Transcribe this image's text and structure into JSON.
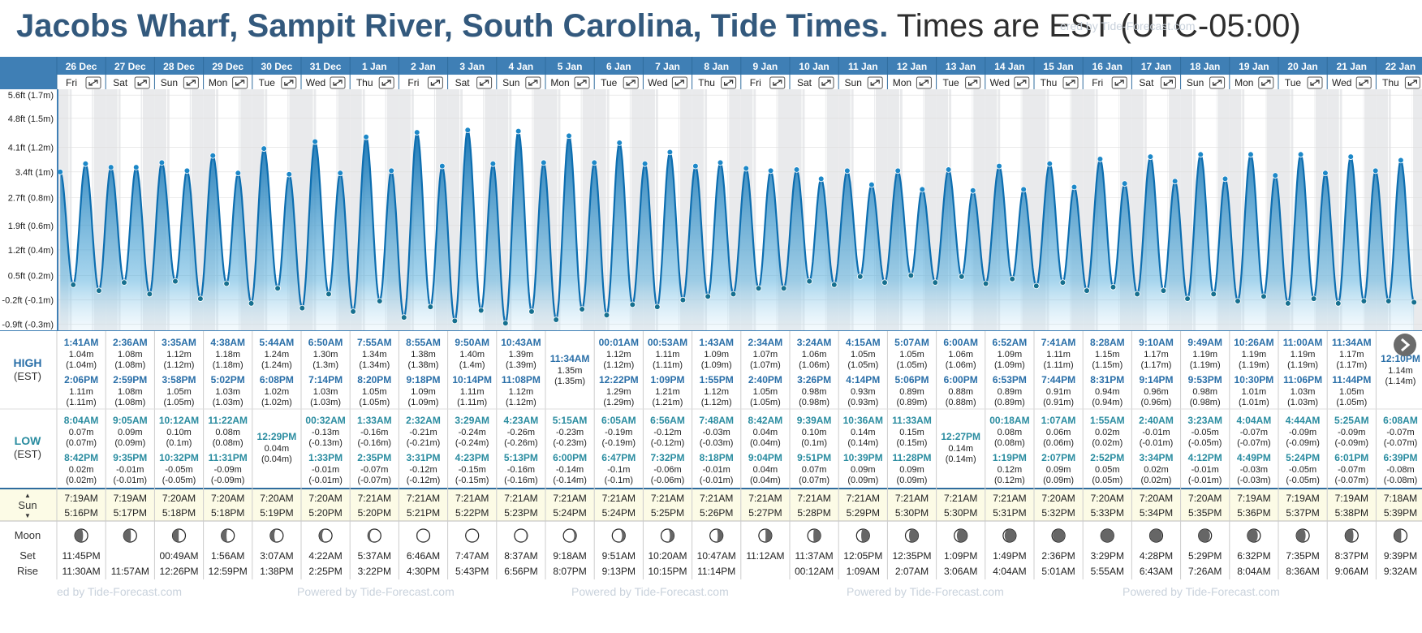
{
  "title": {
    "location": "Jacobs Wharf, Sampit River, South Carolina, Tide Times.",
    "tz_note": "Times are EST (UTC-05:00)"
  },
  "credit": "Powered by Tide-Forecast.com",
  "credit_top": "ered by Tide-Forecast.com",
  "credit_bottom_first": "ed by Tide-Forecast.com",
  "row_labels": {
    "high": "HIGH",
    "high_tz": "(EST)",
    "low": "LOW",
    "low_tz": "(EST)",
    "sun": "Sun",
    "moon": "Moon",
    "set": "Set",
    "rise": "Rise"
  },
  "expand_icon": "expand-icon",
  "next_icon": "chevron-right-icon",
  "colors": {
    "header": "#3f7fb5",
    "title": "#33597d",
    "tide_high": "#0d6eb0",
    "tide_low": "#5fb3df",
    "high_text": "#2a6fa8",
    "low_text": "#2a8ca0",
    "sun_bg": "#fcfbe6",
    "grid_shade": "#e9eaec"
  },
  "chart_data": {
    "type": "area",
    "title": "",
    "ylabel": "",
    "y_ticks": [
      "5.6ft (1.7m)",
      "4.8ft (1.5m)",
      "4.1ft (1.2m)",
      "3.4ft (1m)",
      "2.7ft (0.8m)",
      "1.9ft (0.6m)",
      "1.2ft (0.4m)",
      "0.5ft (0.2m)",
      "-0.2ft (-0.1m)",
      "-0.9ft (-0.3m)"
    ],
    "ylim_m": [
      -0.3,
      1.75
    ],
    "grid": true,
    "days": [
      {
        "date": "26 Dec",
        "dow": "Fri",
        "highs": [
          [
            "1:41AM",
            "1.04m",
            "(1.04m)"
          ],
          [
            "2:06PM",
            "1.11m",
            "(1.11m)"
          ]
        ],
        "lows": [
          [
            "8:04AM",
            "0.07m",
            "(0.07m)"
          ],
          [
            "8:42PM",
            "0.02m",
            "(0.02m)"
          ]
        ],
        "sunrise": "7:19AM",
        "sunset": "5:16PM",
        "moon_phase": 0.18,
        "moonset": "11:45PM",
        "moonrise": "11:30AM"
      },
      {
        "date": "27 Dec",
        "dow": "Sat",
        "highs": [
          [
            "2:36AM",
            "1.08m",
            "(1.08m)"
          ],
          [
            "2:59PM",
            "1.08m",
            "(1.08m)"
          ]
        ],
        "lows": [
          [
            "9:05AM",
            "0.09m",
            "(0.09m)"
          ],
          [
            "9:35PM",
            "-0.01m",
            "(-0.01m)"
          ]
        ],
        "sunrise": "7:19AM",
        "sunset": "5:17PM",
        "moon_phase": 0.22,
        "moonset": "",
        "moonrise": "11:57AM"
      },
      {
        "date": "28 Dec",
        "dow": "Sun",
        "highs": [
          [
            "3:35AM",
            "1.12m",
            "(1.12m)"
          ],
          [
            "3:58PM",
            "1.05m",
            "(1.05m)"
          ]
        ],
        "lows": [
          [
            "10:12AM",
            "0.10m",
            "(0.1m)"
          ],
          [
            "10:32PM",
            "-0.05m",
            "(-0.05m)"
          ]
        ],
        "sunrise": "7:20AM",
        "sunset": "5:18PM",
        "moon_phase": 0.26,
        "moonset": "00:49AM",
        "moonrise": "12:26PM"
      },
      {
        "date": "29 Dec",
        "dow": "Mon",
        "highs": [
          [
            "4:38AM",
            "1.18m",
            "(1.18m)"
          ],
          [
            "5:02PM",
            "1.03m",
            "(1.03m)"
          ]
        ],
        "lows": [
          [
            "11:22AM",
            "0.08m",
            "(0.08m)"
          ],
          [
            "11:31PM",
            "-0.09m",
            "(-0.09m)"
          ]
        ],
        "sunrise": "7:20AM",
        "sunset": "5:18PM",
        "moon_phase": 0.3,
        "moonset": "1:56AM",
        "moonrise": "12:59PM"
      },
      {
        "date": "30 Dec",
        "dow": "Tue",
        "highs": [
          [
            "5:44AM",
            "1.24m",
            "(1.24m)"
          ],
          [
            "6:08PM",
            "1.02m",
            "(1.02m)"
          ]
        ],
        "lows": [
          [
            "12:29PM",
            "0.04m",
            "(0.04m)"
          ]
        ],
        "sunrise": "7:20AM",
        "sunset": "5:19PM",
        "moon_phase": 0.34,
        "moonset": "3:07AM",
        "moonrise": "1:38PM"
      },
      {
        "date": "31 Dec",
        "dow": "Wed",
        "highs": [
          [
            "6:50AM",
            "1.30m",
            "(1.3m)"
          ],
          [
            "7:14PM",
            "1.03m",
            "(1.03m)"
          ]
        ],
        "lows": [
          [
            "00:32AM",
            "-0.13m",
            "(-0.13m)"
          ],
          [
            "1:33PM",
            "-0.01m",
            "(-0.01m)"
          ]
        ],
        "sunrise": "7:20AM",
        "sunset": "5:20PM",
        "moon_phase": 0.38,
        "moonset": "4:22AM",
        "moonrise": "2:25PM"
      },
      {
        "date": "1 Jan",
        "dow": "Thu",
        "highs": [
          [
            "7:55AM",
            "1.34m",
            "(1.34m)"
          ],
          [
            "8:20PM",
            "1.05m",
            "(1.05m)"
          ]
        ],
        "lows": [
          [
            "1:33AM",
            "-0.16m",
            "(-0.16m)"
          ],
          [
            "2:35PM",
            "-0.07m",
            "(-0.07m)"
          ]
        ],
        "sunrise": "7:21AM",
        "sunset": "5:20PM",
        "moon_phase": 0.42,
        "moonset": "5:37AM",
        "moonrise": "3:22PM"
      },
      {
        "date": "2 Jan",
        "dow": "Fri",
        "highs": [
          [
            "8:55AM",
            "1.38m",
            "(1.38m)"
          ],
          [
            "9:18PM",
            "1.09m",
            "(1.09m)"
          ]
        ],
        "lows": [
          [
            "2:32AM",
            "-0.21m",
            "(-0.21m)"
          ],
          [
            "3:31PM",
            "-0.12m",
            "(-0.12m)"
          ]
        ],
        "sunrise": "7:21AM",
        "sunset": "5:21PM",
        "moon_phase": 0.47,
        "moonset": "6:46AM",
        "moonrise": "4:30PM"
      },
      {
        "date": "3 Jan",
        "dow": "Sat",
        "highs": [
          [
            "9:50AM",
            "1.40m",
            "(1.4m)"
          ],
          [
            "10:14PM",
            "1.11m",
            "(1.11m)"
          ]
        ],
        "lows": [
          [
            "3:29AM",
            "-0.24m",
            "(-0.24m)"
          ],
          [
            "4:23PM",
            "-0.15m",
            "(-0.15m)"
          ]
        ],
        "sunrise": "7:21AM",
        "sunset": "5:22PM",
        "moon_phase": 0.5,
        "moonset": "7:47AM",
        "moonrise": "5:43PM"
      },
      {
        "date": "4 Jan",
        "dow": "Sun",
        "highs": [
          [
            "10:43AM",
            "1.39m",
            "(1.39m)"
          ],
          [
            "11:08PM",
            "1.12m",
            "(1.12m)"
          ]
        ],
        "lows": [
          [
            "4:23AM",
            "-0.26m",
            "(-0.26m)"
          ],
          [
            "5:13PM",
            "-0.16m",
            "(-0.16m)"
          ]
        ],
        "sunrise": "7:21AM",
        "sunset": "5:23PM",
        "moon_phase": 0.54,
        "moonset": "8:37AM",
        "moonrise": "6:56PM"
      },
      {
        "date": "5 Jan",
        "dow": "Mon",
        "highs": [
          [
            "11:34AM",
            "1.35m",
            "(1.35m)"
          ]
        ],
        "lows": [
          [
            "5:15AM",
            "-0.23m",
            "(-0.23m)"
          ],
          [
            "6:00PM",
            "-0.14m",
            "(-0.14m)"
          ]
        ],
        "sunrise": "7:21AM",
        "sunset": "5:24PM",
        "moon_phase": 0.58,
        "moonset": "9:18AM",
        "moonrise": "8:07PM"
      },
      {
        "date": "6 Jan",
        "dow": "Tue",
        "highs": [
          [
            "00:01AM",
            "1.12m",
            "(1.12m)"
          ],
          [
            "12:22PM",
            "1.29m",
            "(1.29m)"
          ]
        ],
        "lows": [
          [
            "6:05AM",
            "-0.19m",
            "(-0.19m)"
          ],
          [
            "6:47PM",
            "-0.1m",
            "(-0.1m)"
          ]
        ],
        "sunrise": "7:21AM",
        "sunset": "5:24PM",
        "moon_phase": 0.62,
        "moonset": "9:51AM",
        "moonrise": "9:13PM"
      },
      {
        "date": "7 Jan",
        "dow": "Wed",
        "highs": [
          [
            "00:53AM",
            "1.11m",
            "(1.11m)"
          ],
          [
            "1:09PM",
            "1.21m",
            "(1.21m)"
          ]
        ],
        "lows": [
          [
            "6:56AM",
            "-0.12m",
            "(-0.12m)"
          ],
          [
            "7:32PM",
            "-0.06m",
            "(-0.06m)"
          ]
        ],
        "sunrise": "7:21AM",
        "sunset": "5:25PM",
        "moon_phase": 0.66,
        "moonset": "10:20AM",
        "moonrise": "10:15PM"
      },
      {
        "date": "8 Jan",
        "dow": "Thu",
        "highs": [
          [
            "1:43AM",
            "1.09m",
            "(1.09m)"
          ],
          [
            "1:55PM",
            "1.12m",
            "(1.12m)"
          ]
        ],
        "lows": [
          [
            "7:48AM",
            "-0.03m",
            "(-0.03m)"
          ],
          [
            "8:18PM",
            "-0.01m",
            "(-0.01m)"
          ]
        ],
        "sunrise": "7:21AM",
        "sunset": "5:26PM",
        "moon_phase": 0.7,
        "moonset": "10:47AM",
        "moonrise": "11:14PM"
      },
      {
        "date": "9 Jan",
        "dow": "Fri",
        "highs": [
          [
            "2:34AM",
            "1.07m",
            "(1.07m)"
          ],
          [
            "2:40PM",
            "1.05m",
            "(1.05m)"
          ]
        ],
        "lows": [
          [
            "8:42AM",
            "0.04m",
            "(0.04m)"
          ],
          [
            "9:04PM",
            "0.04m",
            "(0.04m)"
          ]
        ],
        "sunrise": "7:21AM",
        "sunset": "5:27PM",
        "moon_phase": 0.74,
        "moonset": "11:12AM",
        "moonrise": ""
      },
      {
        "date": "10 Jan",
        "dow": "Sat",
        "highs": [
          [
            "3:24AM",
            "1.06m",
            "(1.06m)"
          ],
          [
            "3:26PM",
            "0.98m",
            "(0.98m)"
          ]
        ],
        "lows": [
          [
            "9:39AM",
            "0.10m",
            "(0.1m)"
          ],
          [
            "9:51PM",
            "0.07m",
            "(0.07m)"
          ]
        ],
        "sunrise": "7:21AM",
        "sunset": "5:28PM",
        "moon_phase": 0.78,
        "moonset": "11:37AM",
        "moonrise": "00:12AM"
      },
      {
        "date": "11 Jan",
        "dow": "Sun",
        "highs": [
          [
            "4:15AM",
            "1.05m",
            "(1.05m)"
          ],
          [
            "4:14PM",
            "0.93m",
            "(0.93m)"
          ]
        ],
        "lows": [
          [
            "10:36AM",
            "0.14m",
            "(0.14m)"
          ],
          [
            "10:39PM",
            "0.09m",
            "(0.09m)"
          ]
        ],
        "sunrise": "7:21AM",
        "sunset": "5:29PM",
        "moon_phase": 0.82,
        "moonset": "12:05PM",
        "moonrise": "1:09AM"
      },
      {
        "date": "12 Jan",
        "dow": "Mon",
        "highs": [
          [
            "5:07AM",
            "1.05m",
            "(1.05m)"
          ],
          [
            "5:06PM",
            "0.89m",
            "(0.89m)"
          ]
        ],
        "lows": [
          [
            "11:33AM",
            "0.15m",
            "(0.15m)"
          ],
          [
            "11:28PM",
            "0.09m",
            "(0.09m)"
          ]
        ],
        "sunrise": "7:21AM",
        "sunset": "5:30PM",
        "moon_phase": 0.86,
        "moonset": "12:35PM",
        "moonrise": "2:07AM"
      },
      {
        "date": "13 Jan",
        "dow": "Tue",
        "highs": [
          [
            "6:00AM",
            "1.06m",
            "(1.06m)"
          ],
          [
            "6:00PM",
            "0.88m",
            "(0.88m)"
          ]
        ],
        "lows": [
          [
            "12:27PM",
            "0.14m",
            "(0.14m)"
          ]
        ],
        "sunrise": "7:21AM",
        "sunset": "5:30PM",
        "moon_phase": 0.9,
        "moonset": "1:09PM",
        "moonrise": "3:06AM"
      },
      {
        "date": "14 Jan",
        "dow": "Wed",
        "highs": [
          [
            "6:52AM",
            "1.09m",
            "(1.09m)"
          ],
          [
            "6:53PM",
            "0.89m",
            "(0.89m)"
          ]
        ],
        "lows": [
          [
            "00:18AM",
            "0.08m",
            "(0.08m)"
          ],
          [
            "1:19PM",
            "0.12m",
            "(0.12m)"
          ]
        ],
        "sunrise": "7:21AM",
        "sunset": "5:31PM",
        "moon_phase": 0.94,
        "moonset": "1:49PM",
        "moonrise": "4:04AM"
      },
      {
        "date": "15 Jan",
        "dow": "Thu",
        "highs": [
          [
            "7:41AM",
            "1.11m",
            "(1.11m)"
          ],
          [
            "7:44PM",
            "0.91m",
            "(0.91m)"
          ]
        ],
        "lows": [
          [
            "1:07AM",
            "0.06m",
            "(0.06m)"
          ],
          [
            "2:07PM",
            "0.09m",
            "(0.09m)"
          ]
        ],
        "sunrise": "7:20AM",
        "sunset": "5:32PM",
        "moon_phase": 0.97,
        "moonset": "2:36PM",
        "moonrise": "5:01AM"
      },
      {
        "date": "16 Jan",
        "dow": "Fri",
        "highs": [
          [
            "8:28AM",
            "1.15m",
            "(1.15m)"
          ],
          [
            "8:31PM",
            "0.94m",
            "(0.94m)"
          ]
        ],
        "lows": [
          [
            "1:55AM",
            "0.02m",
            "(0.02m)"
          ],
          [
            "2:52PM",
            "0.05m",
            "(0.05m)"
          ]
        ],
        "sunrise": "7:20AM",
        "sunset": "5:33PM",
        "moon_phase": 1.0,
        "moonset": "3:29PM",
        "moonrise": "5:55AM"
      },
      {
        "date": "17 Jan",
        "dow": "Sat",
        "highs": [
          [
            "9:10AM",
            "1.17m",
            "(1.17m)"
          ],
          [
            "9:14PM",
            "0.96m",
            "(0.96m)"
          ]
        ],
        "lows": [
          [
            "2:40AM",
            "-0.01m",
            "(-0.01m)"
          ],
          [
            "3:34PM",
            "0.02m",
            "(0.02m)"
          ]
        ],
        "sunrise": "7:20AM",
        "sunset": "5:34PM",
        "moon_phase": 0.03,
        "moonset": "4:28PM",
        "moonrise": "6:43AM"
      },
      {
        "date": "18 Jan",
        "dow": "Sun",
        "highs": [
          [
            "9:49AM",
            "1.19m",
            "(1.19m)"
          ],
          [
            "9:53PM",
            "0.98m",
            "(0.98m)"
          ]
        ],
        "lows": [
          [
            "3:23AM",
            "-0.05m",
            "(-0.05m)"
          ],
          [
            "4:12PM",
            "-0.01m",
            "(-0.01m)"
          ]
        ],
        "sunrise": "7:20AM",
        "sunset": "5:35PM",
        "moon_phase": 0.06,
        "moonset": "5:29PM",
        "moonrise": "7:26AM"
      },
      {
        "date": "19 Jan",
        "dow": "Mon",
        "highs": [
          [
            "10:26AM",
            "1.19m",
            "(1.19m)"
          ],
          [
            "10:30PM",
            "1.01m",
            "(1.01m)"
          ]
        ],
        "lows": [
          [
            "4:04AM",
            "-0.07m",
            "(-0.07m)"
          ],
          [
            "4:49PM",
            "-0.03m",
            "(-0.03m)"
          ]
        ],
        "sunrise": "7:19AM",
        "sunset": "5:36PM",
        "moon_phase": 0.1,
        "moonset": "6:32PM",
        "moonrise": "8:04AM"
      },
      {
        "date": "20 Jan",
        "dow": "Tue",
        "highs": [
          [
            "11:00AM",
            "1.19m",
            "(1.19m)"
          ],
          [
            "11:06PM",
            "1.03m",
            "(1.03m)"
          ]
        ],
        "lows": [
          [
            "4:44AM",
            "-0.09m",
            "(-0.09m)"
          ],
          [
            "5:24PM",
            "-0.05m",
            "(-0.05m)"
          ]
        ],
        "sunrise": "7:19AM",
        "sunset": "5:37PM",
        "moon_phase": 0.14,
        "moonset": "7:35PM",
        "moonrise": "8:36AM"
      },
      {
        "date": "21 Jan",
        "dow": "Wed",
        "highs": [
          [
            "11:34AM",
            "1.17m",
            "(1.17m)"
          ],
          [
            "11:44PM",
            "1.05m",
            "(1.05m)"
          ]
        ],
        "lows": [
          [
            "5:25AM",
            "-0.09m",
            "(-0.09m)"
          ],
          [
            "6:01PM",
            "-0.07m",
            "(-0.07m)"
          ]
        ],
        "sunrise": "7:19AM",
        "sunset": "5:38PM",
        "moon_phase": 0.18,
        "moonset": "8:37PM",
        "moonrise": "9:06AM"
      },
      {
        "date": "22 Jan",
        "dow": "Thu",
        "highs": [
          [
            "12:10PM",
            "1.14m",
            "(1.14m)"
          ]
        ],
        "lows": [
          [
            "6:08AM",
            "-0.07m",
            "(-0.07m)"
          ],
          [
            "6:39PM",
            "-0.08m",
            "(-0.08m)"
          ]
        ],
        "sunrise": "7:18AM",
        "sunset": "5:39PM",
        "moon_phase": 0.22,
        "moonset": "9:39PM",
        "moonrise": "9:32AM"
      }
    ]
  }
}
